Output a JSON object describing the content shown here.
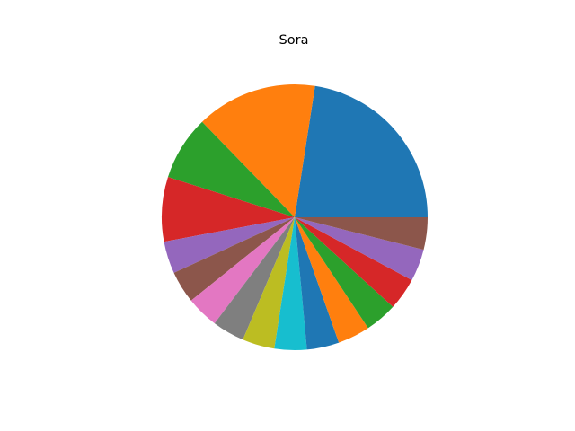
{
  "chart_data": {
    "type": "pie",
    "title": "Sora",
    "start_angle": 0,
    "direction": "counterclockwise",
    "values": [
      23,
      15,
      8,
      8,
      4,
      4,
      4,
      4,
      4,
      4,
      4,
      4,
      4,
      4,
      4,
      4
    ],
    "colors": [
      "#1f77b4",
      "#ff7f0e",
      "#2ca02c",
      "#d62728",
      "#9467bd",
      "#8c564b",
      "#e377c2",
      "#7f7f7f",
      "#bcbd22",
      "#17becf",
      "#1f77b4",
      "#ff7f0e",
      "#2ca02c",
      "#d62728",
      "#9467bd",
      "#8c564b",
      "#e377c2"
    ]
  }
}
